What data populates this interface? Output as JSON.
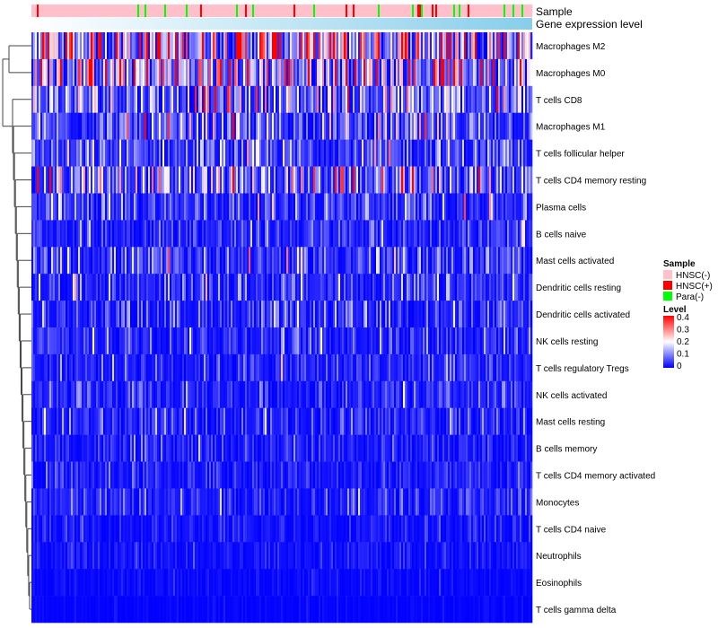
{
  "chart_data": {
    "type": "heatmap",
    "annotations": [
      {
        "name": "Sample"
      },
      {
        "name": "Gene expression level"
      }
    ],
    "rows": [
      "Macrophages M2",
      "Macrophages M0",
      "T cells CD8",
      "Macrophages M1",
      "T cells follicular helper",
      "T cells CD4 memory resting",
      "Plasma cells",
      "B cells naive",
      "Mast cells activated",
      "Dendritic cells resting",
      "Dendritic cells activated",
      "NK cells resting",
      "T cells regulatory  Tregs",
      "NK cells activated",
      "Mast cells resting",
      "B cells memory",
      "T cells CD4 memory activated",
      "Monocytes",
      "T cells CD4 naive",
      "Neutrophils",
      "Eosinophils",
      "T cells gamma delta"
    ],
    "row_mean_levels": [
      0.24,
      0.2,
      0.12,
      0.08,
      0.07,
      0.11,
      0.06,
      0.045,
      0.06,
      0.05,
      0.045,
      0.05,
      0.04,
      0.035,
      0.04,
      0.03,
      0.03,
      0.04,
      0.02,
      0.02,
      0.01,
      0.005
    ],
    "n_samples": 279,
    "sample_legend": {
      "title": "Sample",
      "entries": [
        {
          "label": "HNSC(-)",
          "color": "#FFC0CB"
        },
        {
          "label": "HNSC(+)",
          "color": "#FF0000"
        },
        {
          "label": "Para(-)",
          "color": "#00FF00"
        }
      ]
    },
    "level_legend": {
      "title": "Level",
      "ticks": [
        "0.4",
        "0.3",
        "0.2",
        "0.1",
        "0"
      ],
      "range": [
        0,
        0.4
      ],
      "colors": [
        "#0000FF",
        "#FFFFFF",
        "#FF0000"
      ]
    },
    "gene_expression_colors": [
      "#FFFFFF",
      "#87CEEB"
    ]
  }
}
